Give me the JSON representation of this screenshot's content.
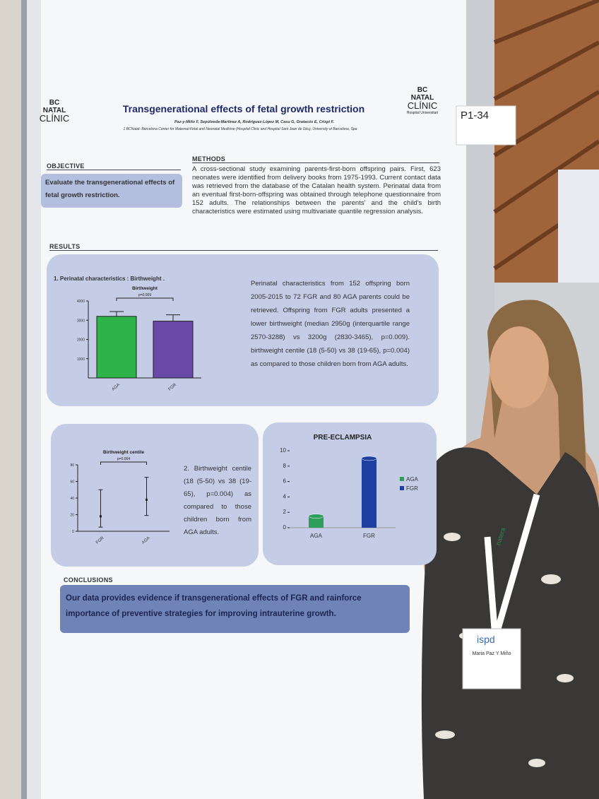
{
  "poster": {
    "code": "P1-34",
    "title": "Transgenerational effects of fetal growth restriction",
    "authors": "Paz-y-Miño F, Sepúlveda-Martinez A, Rodriguez-López M, Casu G, Gratacós E, Crispi F.",
    "affiliation": "1 BCNatal- Barcelona Center for Maternal-Fetal and Neonatal Medicine (Hospital Clinic and Hospital Sant Joan de Déu), University of Barcelona, Spa",
    "logo_left": {
      "top": "BC",
      "name": "NATAL",
      "clinic": "CLÍNIC"
    },
    "logo_right": {
      "top": "BC",
      "name": "NATAL",
      "clinic": "CLÍNIC",
      "sub": "Hospital Universitari"
    },
    "objective": {
      "heading": "OBJECTIVE",
      "text": "Evaluate the transgenerational effects of fetal growth restriction."
    },
    "methods": {
      "heading": "METHODS",
      "text": "A cross-sectional study examining parents-first-born offspring pairs. First, 623 neonates were identified from delivery books from 1975-1993. Current contact data was retrieved from the database of the Catalan health system. Perinatal data from an eventual first-born-offspring was obtained through telephone questionnaire from 152 adults. The relationships between the parents' and the child's birth characteristics were estimated using multivariate quantile regression analysis."
    },
    "results_heading": "RESULTS",
    "panel1": {
      "heading": "1. Perinatal characteristics : Birthweight .",
      "text": "Perinatal characteristics from 152 offspring born 2005-2015 to 72 FGR and 80 AGA parents could be retrieved. Offspring from FGR adults presented a lower birthweight (median 2950g (interquartile range 2570-3288) vs 3200g (2830-3465), p=0.009). birthweight centile (18 (5-50) vs 38 (19-65), p=0.004) as compared to those children born from AGA adults."
    },
    "panel2": {
      "text": "2. Birthweight centile (18 (5-50) vs 38 (19-65), p=0.004) as compared to those children born from AGA adults."
    },
    "conclusions": {
      "heading": "CONCLUSIONS",
      "text": "Our data provides evidence if transgenerational effects of FGR and rainforce importance of preventive strategies for improving intrauterine growth."
    },
    "badge": {
      "brand": "ispd",
      "name": "Maria Paz Y Miño"
    },
    "lanyard": "natera"
  },
  "chart_data": [
    {
      "type": "bar",
      "title": "Birthweight",
      "categories": [
        "AGA",
        "FGR"
      ],
      "values": [
        3200,
        2950
      ],
      "errors": [
        250,
        330
      ],
      "colors": [
        "#2db34a",
        "#6a4aa8"
      ],
      "ylim": [
        0,
        4000
      ],
      "yticks": [
        1000,
        2000,
        3000,
        4000
      ],
      "annotation": "p=0.009"
    },
    {
      "type": "errorbar",
      "title": "Birthweight centile",
      "categories": [
        "FGR",
        "AGA"
      ],
      "values": [
        18,
        38
      ],
      "lower": [
        5,
        19
      ],
      "upper": [
        50,
        65
      ],
      "ylim": [
        0,
        80
      ],
      "yticks": [
        0,
        20,
        40,
        60,
        80
      ],
      "annotation": "p=0.004"
    },
    {
      "type": "bar3d",
      "title": "PRE-ECLAMPSIA",
      "categories": [
        "AGA",
        "FGR"
      ],
      "values": [
        1.5,
        9
      ],
      "colors": [
        "#2e9e5b",
        "#1f3fa0"
      ],
      "ylim": [
        0,
        10
      ],
      "yticks": [
        0,
        2,
        4,
        6,
        8,
        10
      ],
      "legend": true
    }
  ]
}
